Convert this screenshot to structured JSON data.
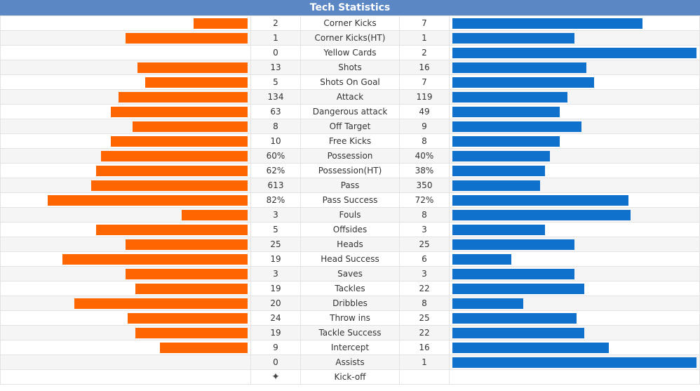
{
  "title": "Tech Statistics",
  "colors": {
    "home": "#ff6600",
    "away": "#0f71cc",
    "header": "#5b87c5"
  },
  "stats": [
    {
      "label": "Corner Kicks",
      "home": "2",
      "away": "7",
      "home_fill": 0.22,
      "away_fill": 0.78
    },
    {
      "label": "Corner Kicks(HT)",
      "home": "1",
      "away": "1",
      "home_fill": 0.5,
      "away_fill": 0.5
    },
    {
      "label": "Yellow Cards",
      "home": "0",
      "away": "2",
      "home_fill": 0.0,
      "away_fill": 1.0
    },
    {
      "label": "Shots",
      "home": "13",
      "away": "16",
      "home_fill": 0.45,
      "away_fill": 0.55
    },
    {
      "label": "Shots On Goal",
      "home": "5",
      "away": "7",
      "home_fill": 0.42,
      "away_fill": 0.58
    },
    {
      "label": "Attack",
      "home": "134",
      "away": "119",
      "home_fill": 0.53,
      "away_fill": 0.47
    },
    {
      "label": "Dangerous attack",
      "home": "63",
      "away": "49",
      "home_fill": 0.56,
      "away_fill": 0.44
    },
    {
      "label": "Off Target",
      "home": "8",
      "away": "9",
      "home_fill": 0.47,
      "away_fill": 0.53
    },
    {
      "label": "Free Kicks",
      "home": "10",
      "away": "8",
      "home_fill": 0.56,
      "away_fill": 0.44
    },
    {
      "label": "Possession",
      "home": "60%",
      "away": "40%",
      "home_fill": 0.6,
      "away_fill": 0.4
    },
    {
      "label": "Possession(HT)",
      "home": "62%",
      "away": "38%",
      "home_fill": 0.62,
      "away_fill": 0.38
    },
    {
      "label": "Pass",
      "home": "613",
      "away": "350",
      "home_fill": 0.64,
      "away_fill": 0.36
    },
    {
      "label": "Pass Success",
      "home": "82%",
      "away": "72%",
      "home_fill": 0.82,
      "away_fill": 0.72
    },
    {
      "label": "Fouls",
      "home": "3",
      "away": "8",
      "home_fill": 0.27,
      "away_fill": 0.73
    },
    {
      "label": "Offsides",
      "home": "5",
      "away": "3",
      "home_fill": 0.62,
      "away_fill": 0.38
    },
    {
      "label": "Heads",
      "home": "25",
      "away": "25",
      "home_fill": 0.5,
      "away_fill": 0.5
    },
    {
      "label": "Head Success",
      "home": "19",
      "away": "6",
      "home_fill": 0.76,
      "away_fill": 0.24
    },
    {
      "label": "Saves",
      "home": "3",
      "away": "3",
      "home_fill": 0.5,
      "away_fill": 0.5
    },
    {
      "label": "Tackles",
      "home": "19",
      "away": "22",
      "home_fill": 0.46,
      "away_fill": 0.54
    },
    {
      "label": "Dribbles",
      "home": "20",
      "away": "8",
      "home_fill": 0.71,
      "away_fill": 0.29
    },
    {
      "label": "Throw ins",
      "home": "24",
      "away": "25",
      "home_fill": 0.49,
      "away_fill": 0.51
    },
    {
      "label": "Tackle Success",
      "home": "19",
      "away": "22",
      "home_fill": 0.46,
      "away_fill": 0.54
    },
    {
      "label": "Intercept",
      "home": "9",
      "away": "16",
      "home_fill": 0.36,
      "away_fill": 0.64
    },
    {
      "label": "Assists",
      "home": "0",
      "away": "1",
      "home_fill": 0.0,
      "away_fill": 1.0
    }
  ],
  "kickoff": {
    "label": "Kick-off",
    "icon": "ball-icon",
    "glyph": "✦"
  }
}
